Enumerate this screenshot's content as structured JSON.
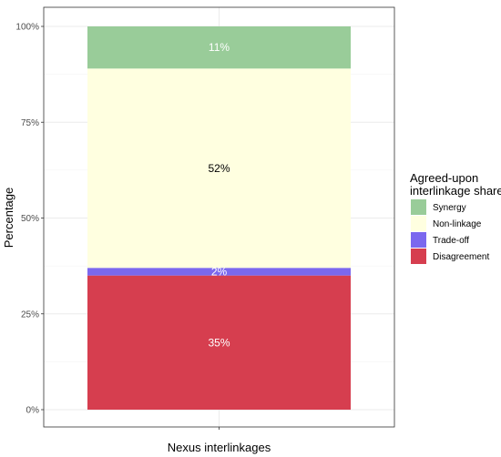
{
  "chart_data": {
    "type": "bar",
    "stacked": true,
    "categories": [
      "Nexus interlinkages"
    ],
    "xlabel": "Nexus interlinkages",
    "ylabel": "Percentage",
    "ylim": [
      0,
      100
    ],
    "yticks": [
      0,
      25,
      50,
      75,
      100
    ],
    "ytick_labels": [
      "0%",
      "25%",
      "50%",
      "75%",
      "100%"
    ],
    "grid": true,
    "legend": {
      "title_lines": [
        "Agreed-upon",
        "interlinkage shares"
      ],
      "placement": "right"
    },
    "series": [
      {
        "name": "Disagreement",
        "values": [
          35
        ],
        "label": "35%",
        "color": "#d63e4f",
        "label_color": "#ffffff"
      },
      {
        "name": "Trade-off",
        "values": [
          2
        ],
        "label": "2%",
        "color": "#7b68ee",
        "label_color": "#ffffff"
      },
      {
        "name": "Non-linkage",
        "values": [
          52
        ],
        "label": "52%",
        "color": "#ffffe0",
        "label_color": "#000000"
      },
      {
        "name": "Synergy",
        "values": [
          11
        ],
        "label": "11%",
        "color": "#99cc99",
        "label_color": "#ffffff"
      }
    ],
    "legend_order": [
      "Synergy",
      "Non-linkage",
      "Trade-off",
      "Disagreement"
    ]
  }
}
